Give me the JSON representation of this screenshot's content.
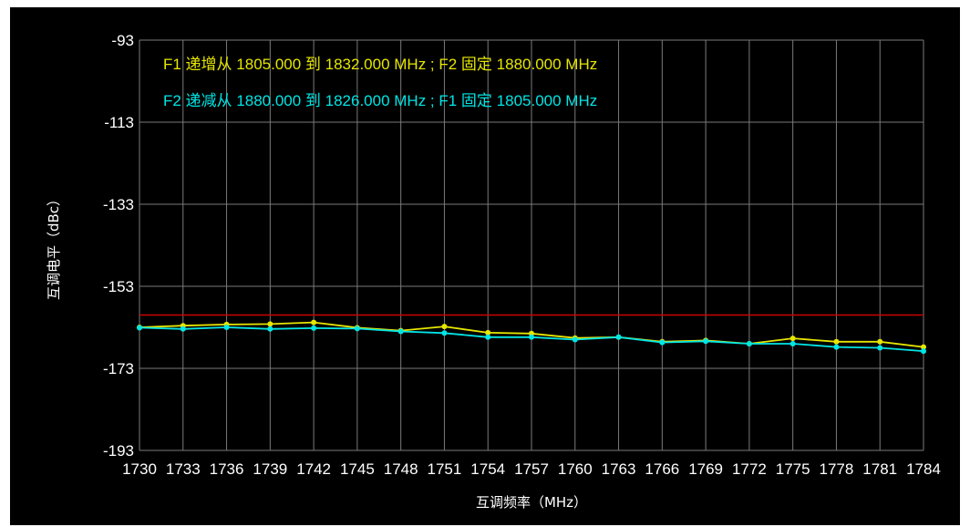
{
  "chart_data": {
    "type": "line",
    "xlabel": "互调频率（MHz）",
    "ylabel": "互调电平（dBc）",
    "x": [
      1730,
      1733,
      1736,
      1739,
      1742,
      1745,
      1748,
      1751,
      1754,
      1757,
      1760,
      1763,
      1766,
      1769,
      1772,
      1775,
      1778,
      1781,
      1784
    ],
    "x_tick_labels": [
      "1730",
      "1733",
      "1736",
      "1739",
      "1742",
      "1745",
      "1748",
      "1751",
      "1754",
      "1757",
      "1760",
      "1763",
      "1766",
      "1769",
      "1772",
      "1775",
      "1778",
      "1781",
      "1784"
    ],
    "y_ticks": [
      -93,
      -113,
      -133,
      -153,
      -173,
      -193
    ],
    "y_tick_labels": [
      "-93",
      "-113",
      "-133",
      "-153",
      "-173",
      "-193"
    ],
    "ylim": [
      -193,
      -93
    ],
    "xlim": [
      1730,
      1784
    ],
    "grid": true,
    "limit_line": {
      "value": -160,
      "color": "#cc0000"
    },
    "series": [
      {
        "name": "F1 递增从 1805.000 到 1832.000 MHz ; F2 固定 1880.000 MHz",
        "color": "#e6e600",
        "values": [
          -163.0,
          -162.6,
          -162.3,
          -162.2,
          -161.8,
          -163.1,
          -163.8,
          -162.8,
          -164.3,
          -164.5,
          -165.6,
          -165.4,
          -166.5,
          -166.2,
          -167.0,
          -165.7,
          -166.5,
          -166.5,
          -167.8
        ]
      },
      {
        "name": "F2 递减从 1880.000 到 1826.000 MHz ; F1 固定 1805.000 MHz",
        "color": "#00e5e5",
        "values": [
          -163.1,
          -163.4,
          -163.0,
          -163.4,
          -163.2,
          -163.3,
          -164.0,
          -164.4,
          -165.4,
          -165.4,
          -166.0,
          -165.4,
          -166.7,
          -166.4,
          -167.0,
          -167.0,
          -167.8,
          -168.0,
          -168.8
        ]
      }
    ]
  }
}
